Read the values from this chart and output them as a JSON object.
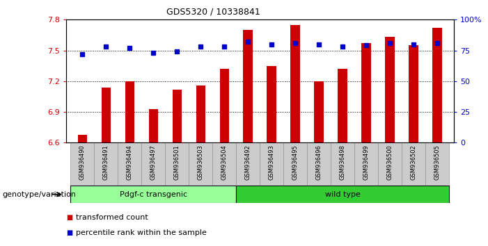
{
  "title": "GDS5320 / 10338841",
  "categories": [
    "GSM936490",
    "GSM936491",
    "GSM936494",
    "GSM936497",
    "GSM936501",
    "GSM936503",
    "GSM936504",
    "GSM936492",
    "GSM936493",
    "GSM936495",
    "GSM936496",
    "GSM936498",
    "GSM936499",
    "GSM936500",
    "GSM936502",
    "GSM936505"
  ],
  "red_values": [
    6.68,
    7.14,
    7.2,
    6.93,
    7.12,
    7.16,
    7.32,
    7.7,
    7.35,
    7.75,
    7.2,
    7.32,
    7.57,
    7.63,
    7.55,
    7.72
  ],
  "blue_values": [
    72,
    78,
    77,
    73,
    74,
    78,
    78,
    82,
    80,
    81,
    80,
    78,
    79,
    81,
    80,
    81
  ],
  "ylim_left": [
    6.6,
    7.8
  ],
  "ylim_right": [
    0,
    100
  ],
  "yticks_left": [
    6.6,
    6.9,
    7.2,
    7.5,
    7.8
  ],
  "yticks_right": [
    0,
    25,
    50,
    75,
    100
  ],
  "bar_color": "#cc0000",
  "dot_color": "#0000cc",
  "group1_label": "Pdgf-c transgenic",
  "group2_label": "wild type",
  "group1_count": 7,
  "group2_count": 9,
  "group1_color": "#99ff99",
  "group2_color": "#33cc33",
  "genotype_label": "genotype/variation",
  "legend1": "transformed count",
  "legend2": "percentile rank within the sample",
  "background_color": "#ffffff",
  "tick_area_color": "#cccccc"
}
